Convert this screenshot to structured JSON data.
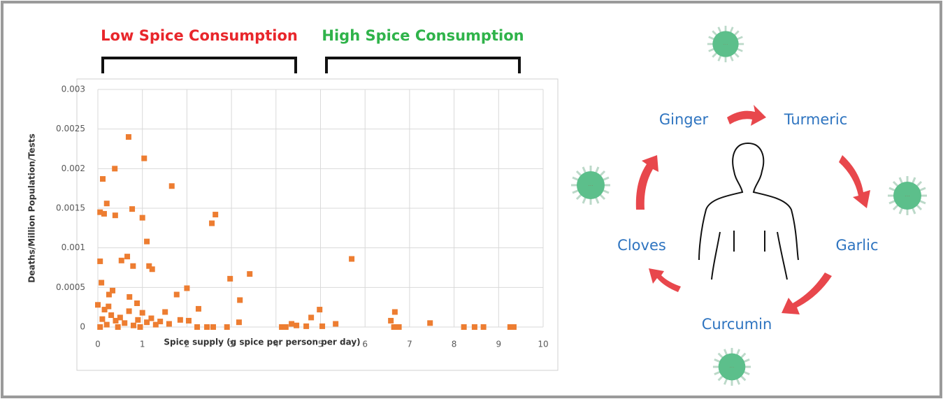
{
  "chart_data": {
    "type": "scatter",
    "annotations": [
      "Low Spice Consumption",
      "High Spice Consumption"
    ],
    "xlabel": "Spice supply (g spice per person per day)",
    "ylabel": "Deaths/Million Population/Tests",
    "color": "#ed7d31",
    "x": [
      0.69,
      1.04,
      0.38,
      0.11,
      1.66,
      0.2,
      0.05,
      0.14,
      0.39,
      0.77,
      1.0,
      2.64,
      2.56,
      1.1,
      0.66,
      0.53,
      0.05,
      1.15,
      1.22,
      0.79,
      5.7,
      3.41,
      2.97,
      0.08,
      2.0,
      0.33,
      0.25,
      1.77,
      3.19,
      0.71,
      0.0,
      0.24,
      0.88,
      2.26,
      4.98,
      1.51,
      6.67,
      4.79,
      2.04,
      3.17,
      6.58,
      4.35,
      4.46,
      5.34,
      7.46,
      4.68,
      5.04,
      6.65,
      6.76,
      4.13,
      4.22,
      2.23,
      2.45,
      2.59,
      2.9,
      8.22,
      8.46,
      8.66,
      9.26,
      9.34,
      0.1,
      0.2,
      0.3,
      0.4,
      0.5,
      0.6,
      0.7,
      0.8,
      0.9,
      1.0,
      1.1,
      1.2,
      1.3,
      0.15,
      0.45,
      0.95,
      1.4,
      1.6,
      1.85,
      0.05
    ],
    "values": [
      0.0024,
      0.00213,
      0.002,
      0.00187,
      0.00178,
      0.00156,
      0.00145,
      0.00143,
      0.00141,
      0.00149,
      0.00138,
      0.00142,
      0.00131,
      0.00108,
      0.00089,
      0.00084,
      0.00083,
      0.00077,
      0.00073,
      0.00077,
      0.00086,
      0.00067,
      0.00061,
      0.00056,
      0.00049,
      0.00046,
      0.00041,
      0.00041,
      0.00034,
      0.00038,
      0.00028,
      0.00026,
      0.0003,
      0.00023,
      0.00022,
      0.00019,
      0.00019,
      0.00012,
      8e-05,
      6e-05,
      8e-05,
      4e-05,
      2e-05,
      4e-05,
      5e-05,
      1e-05,
      1e-05,
      0,
      0,
      0,
      0,
      0,
      0,
      0,
      0,
      0,
      0,
      0,
      0,
      0,
      0.0001,
      3e-05,
      0.00015,
      8e-05,
      0.00012,
      5e-05,
      0.0002,
      2e-05,
      9e-05,
      0.00018,
      6e-05,
      0.00011,
      3e-05,
      0.00022,
      0,
      0,
      7e-05,
      4e-05,
      9e-05,
      0
    ],
    "xlim": [
      0,
      10
    ],
    "xticks": [
      0,
      1,
      2,
      3,
      4,
      5,
      6,
      7,
      8,
      9,
      10
    ],
    "ylim": [
      0,
      0.003
    ],
    "yticks": [
      0,
      0.0005,
      0.001,
      0.0015,
      0.002,
      0.0025,
      0.003
    ],
    "grid": true
  },
  "diagram": {
    "labels": [
      "Ginger",
      "Turmeric",
      "Garlic",
      "Curcumin",
      "Cloves"
    ]
  }
}
